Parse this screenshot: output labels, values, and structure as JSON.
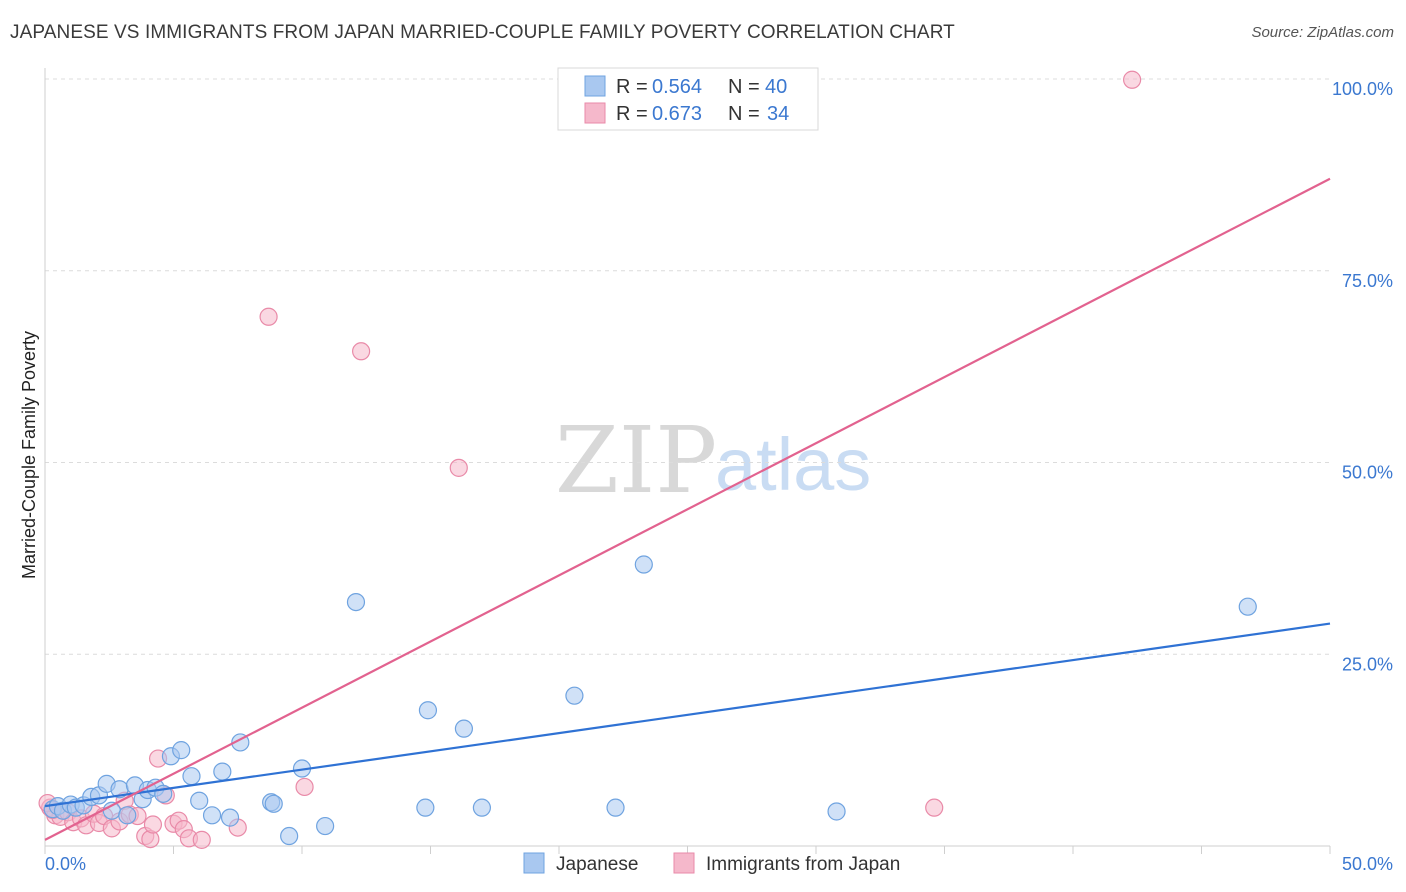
{
  "header": {
    "title": "JAPANESE VS IMMIGRANTS FROM JAPAN MARRIED-COUPLE FAMILY POVERTY CORRELATION CHART",
    "source": "Source: ZipAtlas.com"
  },
  "watermark": {
    "zip": "ZIP",
    "atlas": "atlas"
  },
  "legend": {
    "rows": [
      {
        "r_label": "R =",
        "r_value": "0.564",
        "n_label": "N =",
        "n_value": "40",
        "color": "#a9c8f0"
      },
      {
        "r_label": "R =",
        "r_value": "0.673",
        "n_label": "N =",
        "n_value": "34",
        "color": "#f5b8cb"
      }
    ]
  },
  "bottom_legend": {
    "items": [
      {
        "label": "Japanese",
        "color": "#a9c8f0"
      },
      {
        "label": "Immigrants from Japan",
        "color": "#f5b8cb"
      }
    ]
  },
  "colors": {
    "blue_fill": "#a9c8f0",
    "blue_stroke": "#6fa3e0",
    "blue_line": "#2f72d4",
    "pink_fill": "#f5b8cb",
    "pink_stroke": "#e98aa8",
    "pink_line": "#e2628f",
    "tick_text": "#3b78d0",
    "grid": "#dcdcdc"
  },
  "chart_data": {
    "type": "scatter",
    "title": "JAPANESE VS IMMIGRANTS FROM JAPAN MARRIED-COUPLE FAMILY POVERTY CORRELATION CHART",
    "ylabel": "Married-Couple Family Poverty",
    "xlabel": "",
    "xlim": [
      0,
      50
    ],
    "ylim": [
      0,
      102
    ],
    "x_ticks": [
      "0.0%",
      "50.0%"
    ],
    "y_ticks": [
      {
        "value": 25,
        "label": "25.0%"
      },
      {
        "value": 50,
        "label": "50.0%"
      },
      {
        "value": 75,
        "label": "75.0%"
      },
      {
        "value": 100,
        "label": "100.0%"
      }
    ],
    "grid": true,
    "series": [
      {
        "name": "Japanese",
        "points": [
          [
            0.3,
            4.8
          ],
          [
            0.5,
            5.2
          ],
          [
            0.7,
            4.6
          ],
          [
            1.0,
            5.4
          ],
          [
            1.2,
            5.0
          ],
          [
            1.5,
            5.3
          ],
          [
            1.8,
            6.4
          ],
          [
            2.1,
            6.6
          ],
          [
            2.4,
            8.1
          ],
          [
            2.6,
            4.6
          ],
          [
            2.9,
            7.4
          ],
          [
            3.2,
            4.0
          ],
          [
            3.5,
            7.9
          ],
          [
            3.8,
            6.1
          ],
          [
            4.0,
            7.3
          ],
          [
            4.3,
            7.6
          ],
          [
            4.6,
            6.8
          ],
          [
            4.9,
            11.7
          ],
          [
            5.3,
            12.5
          ],
          [
            5.7,
            9.1
          ],
          [
            6.0,
            5.9
          ],
          [
            6.5,
            4.0
          ],
          [
            6.9,
            9.7
          ],
          [
            7.2,
            3.7
          ],
          [
            7.6,
            13.5
          ],
          [
            8.8,
            5.7
          ],
          [
            8.9,
            5.5
          ],
          [
            9.5,
            1.3
          ],
          [
            10.0,
            10.1
          ],
          [
            10.9,
            2.6
          ],
          [
            12.1,
            31.8
          ],
          [
            14.8,
            5.0
          ],
          [
            14.9,
            17.7
          ],
          [
            16.3,
            15.3
          ],
          [
            17.0,
            5.0
          ],
          [
            20.6,
            19.6
          ],
          [
            22.2,
            5.0
          ],
          [
            23.3,
            36.7
          ],
          [
            30.8,
            4.5
          ],
          [
            46.8,
            31.2
          ]
        ]
      },
      {
        "name": "Immigrants from Japan",
        "points": [
          [
            0.2,
            5.0
          ],
          [
            0.4,
            4.0
          ],
          [
            0.6,
            3.8
          ],
          [
            0.9,
            4.4
          ],
          [
            1.1,
            3.1
          ],
          [
            1.4,
            3.6
          ],
          [
            1.6,
            2.7
          ],
          [
            1.9,
            4.2
          ],
          [
            2.1,
            3.0
          ],
          [
            2.3,
            3.9
          ],
          [
            2.6,
            2.3
          ],
          [
            2.9,
            3.2
          ],
          [
            3.1,
            5.9
          ],
          [
            3.3,
            4.1
          ],
          [
            3.6,
            3.9
          ],
          [
            3.9,
            1.3
          ],
          [
            4.1,
            0.9
          ],
          [
            4.2,
            2.8
          ],
          [
            4.4,
            11.4
          ],
          [
            4.7,
            6.6
          ],
          [
            5.0,
            2.9
          ],
          [
            5.2,
            3.3
          ],
          [
            5.4,
            2.2
          ],
          [
            5.6,
            1.0
          ],
          [
            6.1,
            0.8
          ],
          [
            7.5,
            2.4
          ],
          [
            8.7,
            69.0
          ],
          [
            10.1,
            7.7
          ],
          [
            12.3,
            64.5
          ],
          [
            16.1,
            49.3
          ],
          [
            34.6,
            5.0
          ],
          [
            42.3,
            99.9
          ],
          [
            0.1,
            5.6
          ],
          [
            0.3,
            4.7
          ]
        ]
      }
    ],
    "trendlines": [
      {
        "series": "Japanese",
        "from": [
          0,
          5.2
        ],
        "to": [
          50,
          29.0
        ]
      },
      {
        "series": "Immigrants from Japan",
        "from": [
          0,
          0.8
        ],
        "to": [
          50,
          87.0
        ]
      }
    ]
  }
}
